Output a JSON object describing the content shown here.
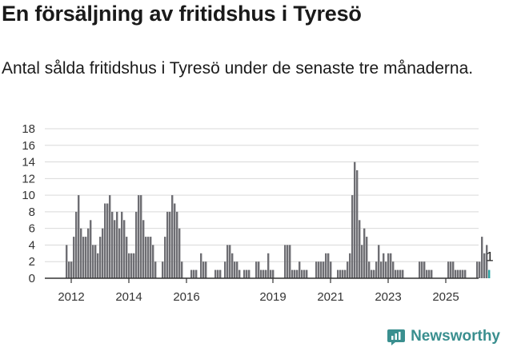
{
  "header": {
    "title": "En försäljning av fritidshus i Tyresö",
    "subtitle": "Antal sålda fritidshus i Tyresö under de senaste tre månaderna."
  },
  "brand": {
    "name": "Newsworthy",
    "icon": "newsworthy-logo-icon",
    "color": "#3a8f8f"
  },
  "colors": {
    "bar": "#6e6e73",
    "highlight": "#2aa3a3",
    "grid": "#d9d9d9",
    "axis": "#333333"
  },
  "chart_data": {
    "type": "bar",
    "x_start": "2011-11",
    "frequency": "monthly",
    "values": [
      4,
      2,
      2,
      5,
      8,
      10,
      6,
      5,
      5,
      6,
      7,
      4,
      4,
      3,
      5,
      6,
      9,
      9,
      10,
      8,
      7,
      8,
      6,
      8,
      7,
      5,
      3,
      3,
      3,
      8,
      10,
      10,
      7,
      5,
      5,
      5,
      4,
      2,
      0,
      0,
      2,
      5,
      8,
      8,
      10,
      9,
      8,
      6,
      2,
      0,
      0,
      0,
      1,
      1,
      1,
      0,
      3,
      2,
      2,
      0,
      0,
      0,
      1,
      1,
      1,
      0,
      2,
      4,
      4,
      3,
      2,
      2,
      1,
      0,
      1,
      1,
      1,
      0,
      0,
      2,
      2,
      1,
      1,
      1,
      3,
      1,
      1,
      0,
      0,
      0,
      0,
      4,
      4,
      4,
      1,
      1,
      1,
      2,
      1,
      1,
      1,
      0,
      0,
      0,
      2,
      2,
      2,
      2,
      3,
      3,
      2,
      0,
      0,
      1,
      1,
      1,
      1,
      2,
      3,
      10,
      14,
      13,
      7,
      4,
      6,
      5,
      2,
      1,
      1,
      2,
      4,
      2,
      3,
      2,
      3,
      3,
      2,
      1,
      1,
      1,
      1,
      0,
      0,
      0,
      0,
      0,
      0,
      2,
      2,
      2,
      1,
      1,
      1,
      0,
      0,
      0,
      0,
      0,
      0,
      2,
      2,
      2,
      1,
      1,
      1,
      1,
      1,
      0,
      0,
      0,
      0,
      2,
      2,
      5,
      3,
      4,
      1
    ],
    "highlight_last": true,
    "annotation": "1",
    "x_ticks": [
      "2012",
      "2014",
      "2016",
      "2019",
      "2021",
      "2023",
      "2025"
    ],
    "y_ticks": [
      0,
      2,
      4,
      6,
      8,
      10,
      12,
      14,
      16,
      18
    ],
    "ylim": [
      0,
      18
    ],
    "grid": true
  }
}
